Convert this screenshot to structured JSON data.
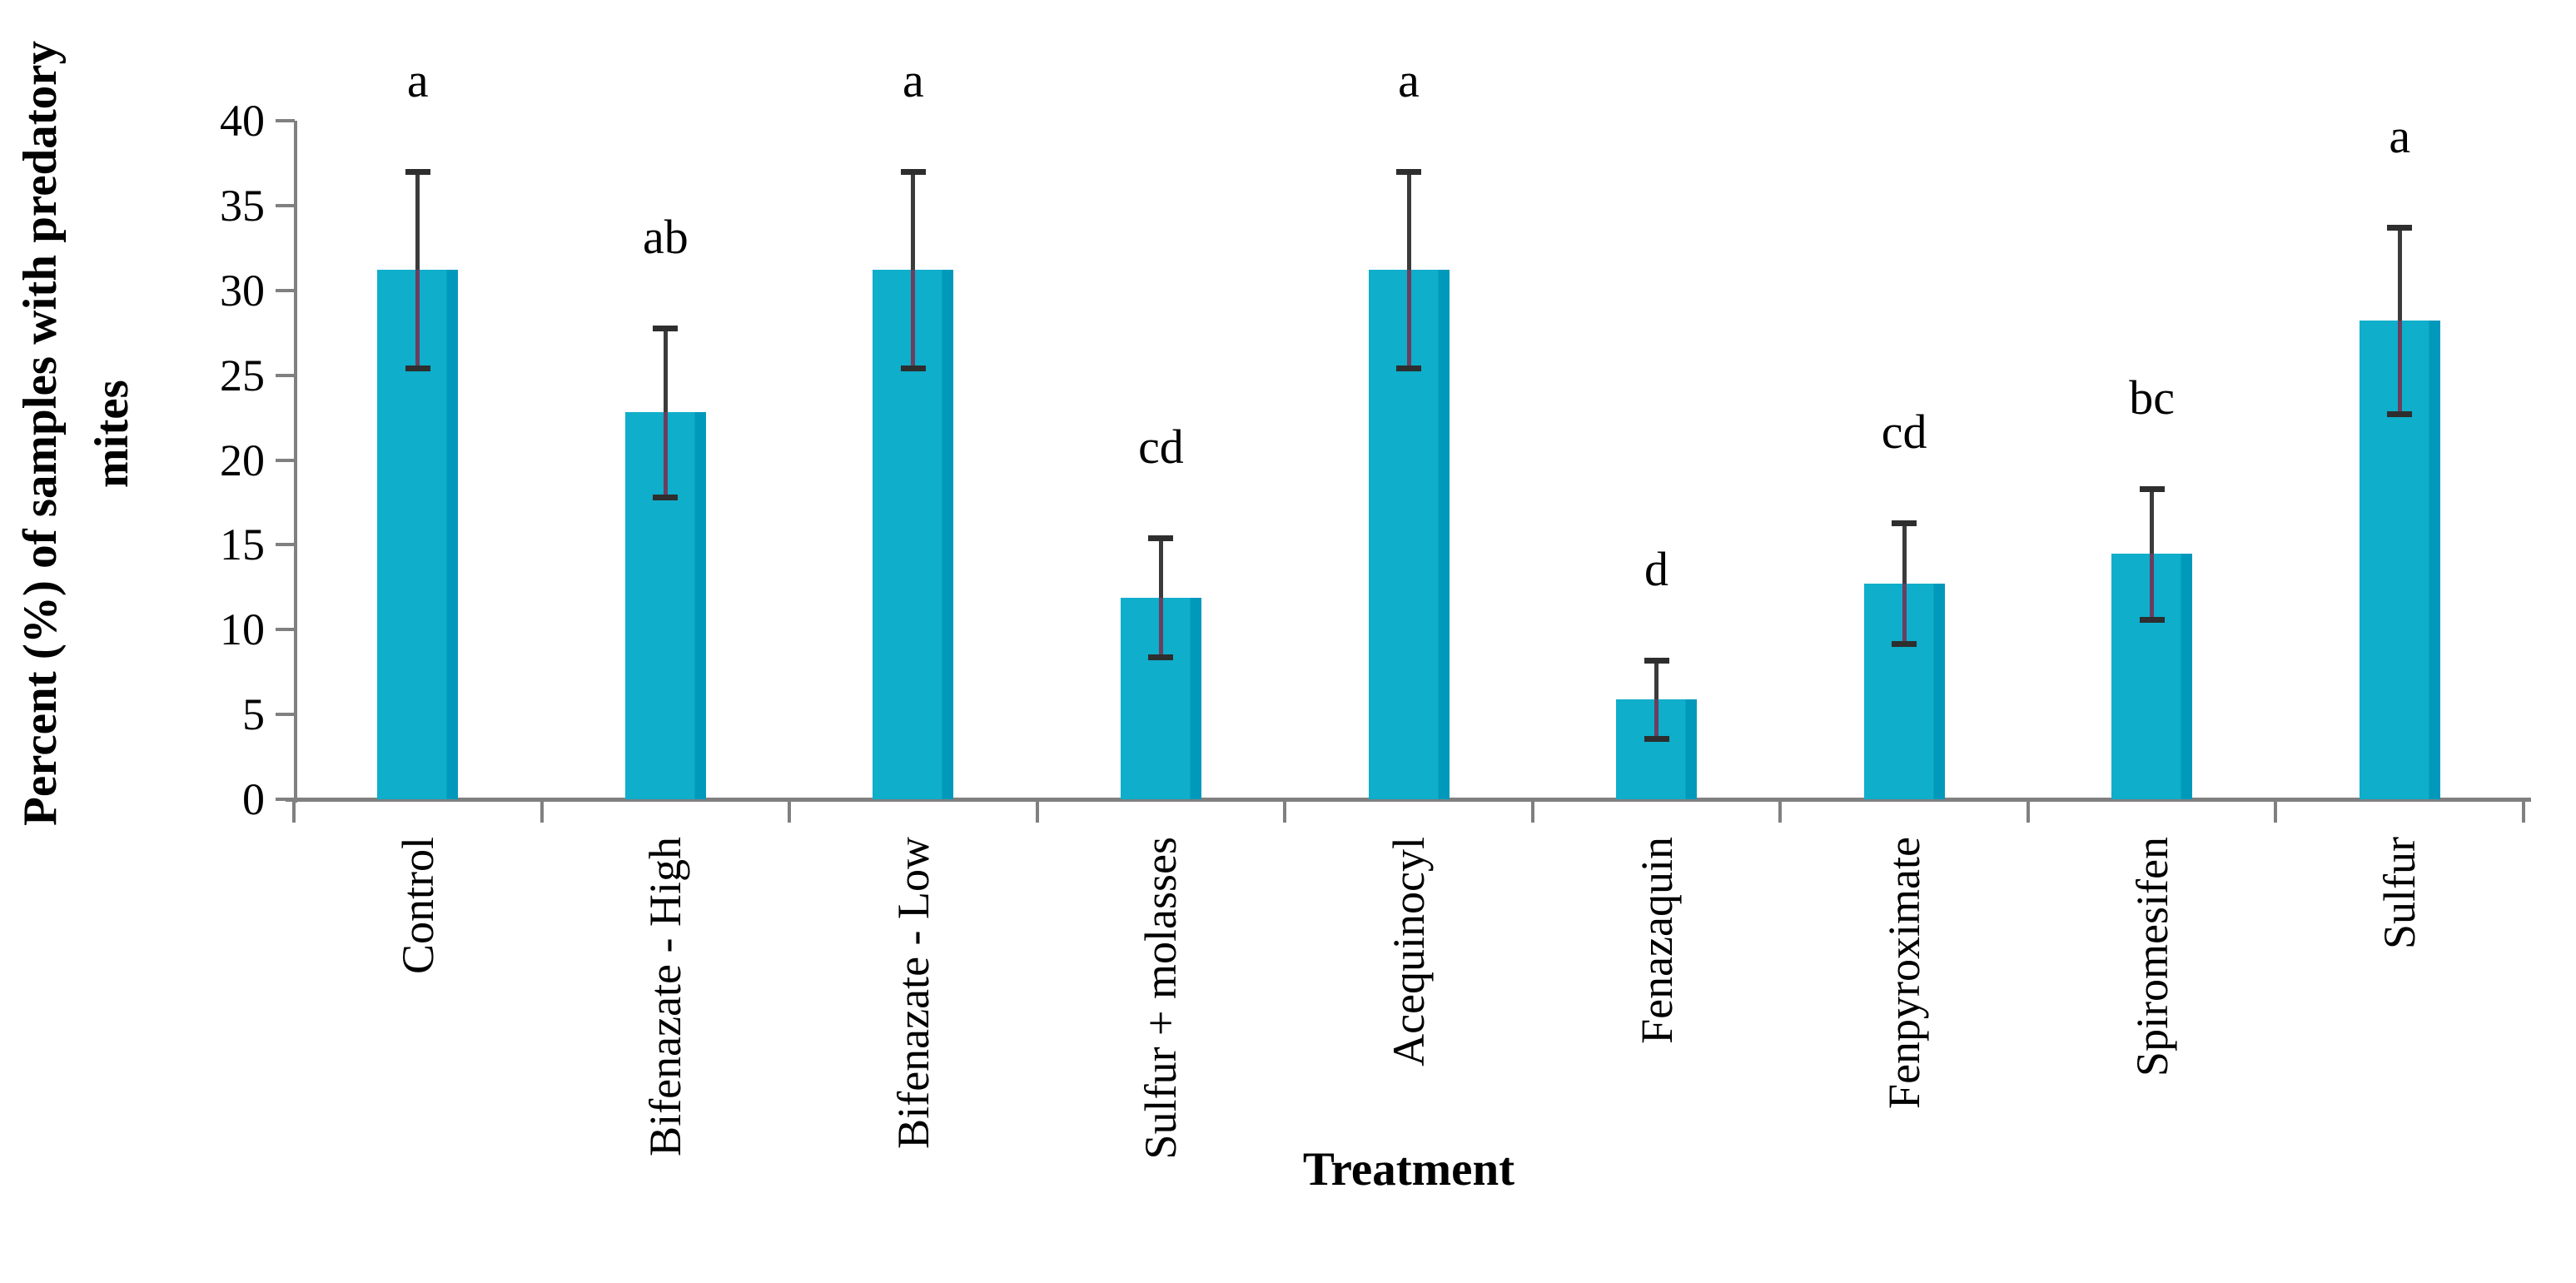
{
  "chart_data": {
    "type": "bar",
    "title": "",
    "xlabel": "Treatment",
    "ylabel": "Percent (%) of samples with predatory mites",
    "ylabel_lines": [
      "Percent (%) of samples with predatory",
      "mites"
    ],
    "categories": [
      "Control",
      "Bifenazate - High",
      "Bifenazate - Low",
      "Sulfur + molasses",
      "Acequinocyl",
      "Fenazaquin",
      "Fenpyroximate",
      "Spiromesifen",
      "Sulfur"
    ],
    "values": [
      31.2,
      22.8,
      31.2,
      11.9,
      31.2,
      5.9,
      12.7,
      14.5,
      28.2
    ],
    "error_high": [
      37.0,
      27.8,
      37.0,
      15.4,
      37.0,
      8.2,
      16.3,
      18.3,
      33.7
    ],
    "error_low": [
      25.4,
      17.8,
      25.4,
      8.4,
      25.4,
      3.6,
      9.2,
      10.6,
      22.7
    ],
    "sig_letters": [
      "a",
      "ab",
      "a",
      "cd",
      "a",
      "d",
      "cd",
      "bc",
      "a"
    ],
    "ylim": [
      0,
      40
    ],
    "yticks": [
      0,
      5,
      10,
      15,
      20,
      25,
      30,
      35,
      40
    ],
    "grid": false,
    "legend": "none",
    "bar_color": "#0FAECA",
    "bar_edge_color": "#0099BB",
    "error_bar_color": "#3B3B3B",
    "axis_color": "#808080",
    "text_color": "#000000"
  }
}
